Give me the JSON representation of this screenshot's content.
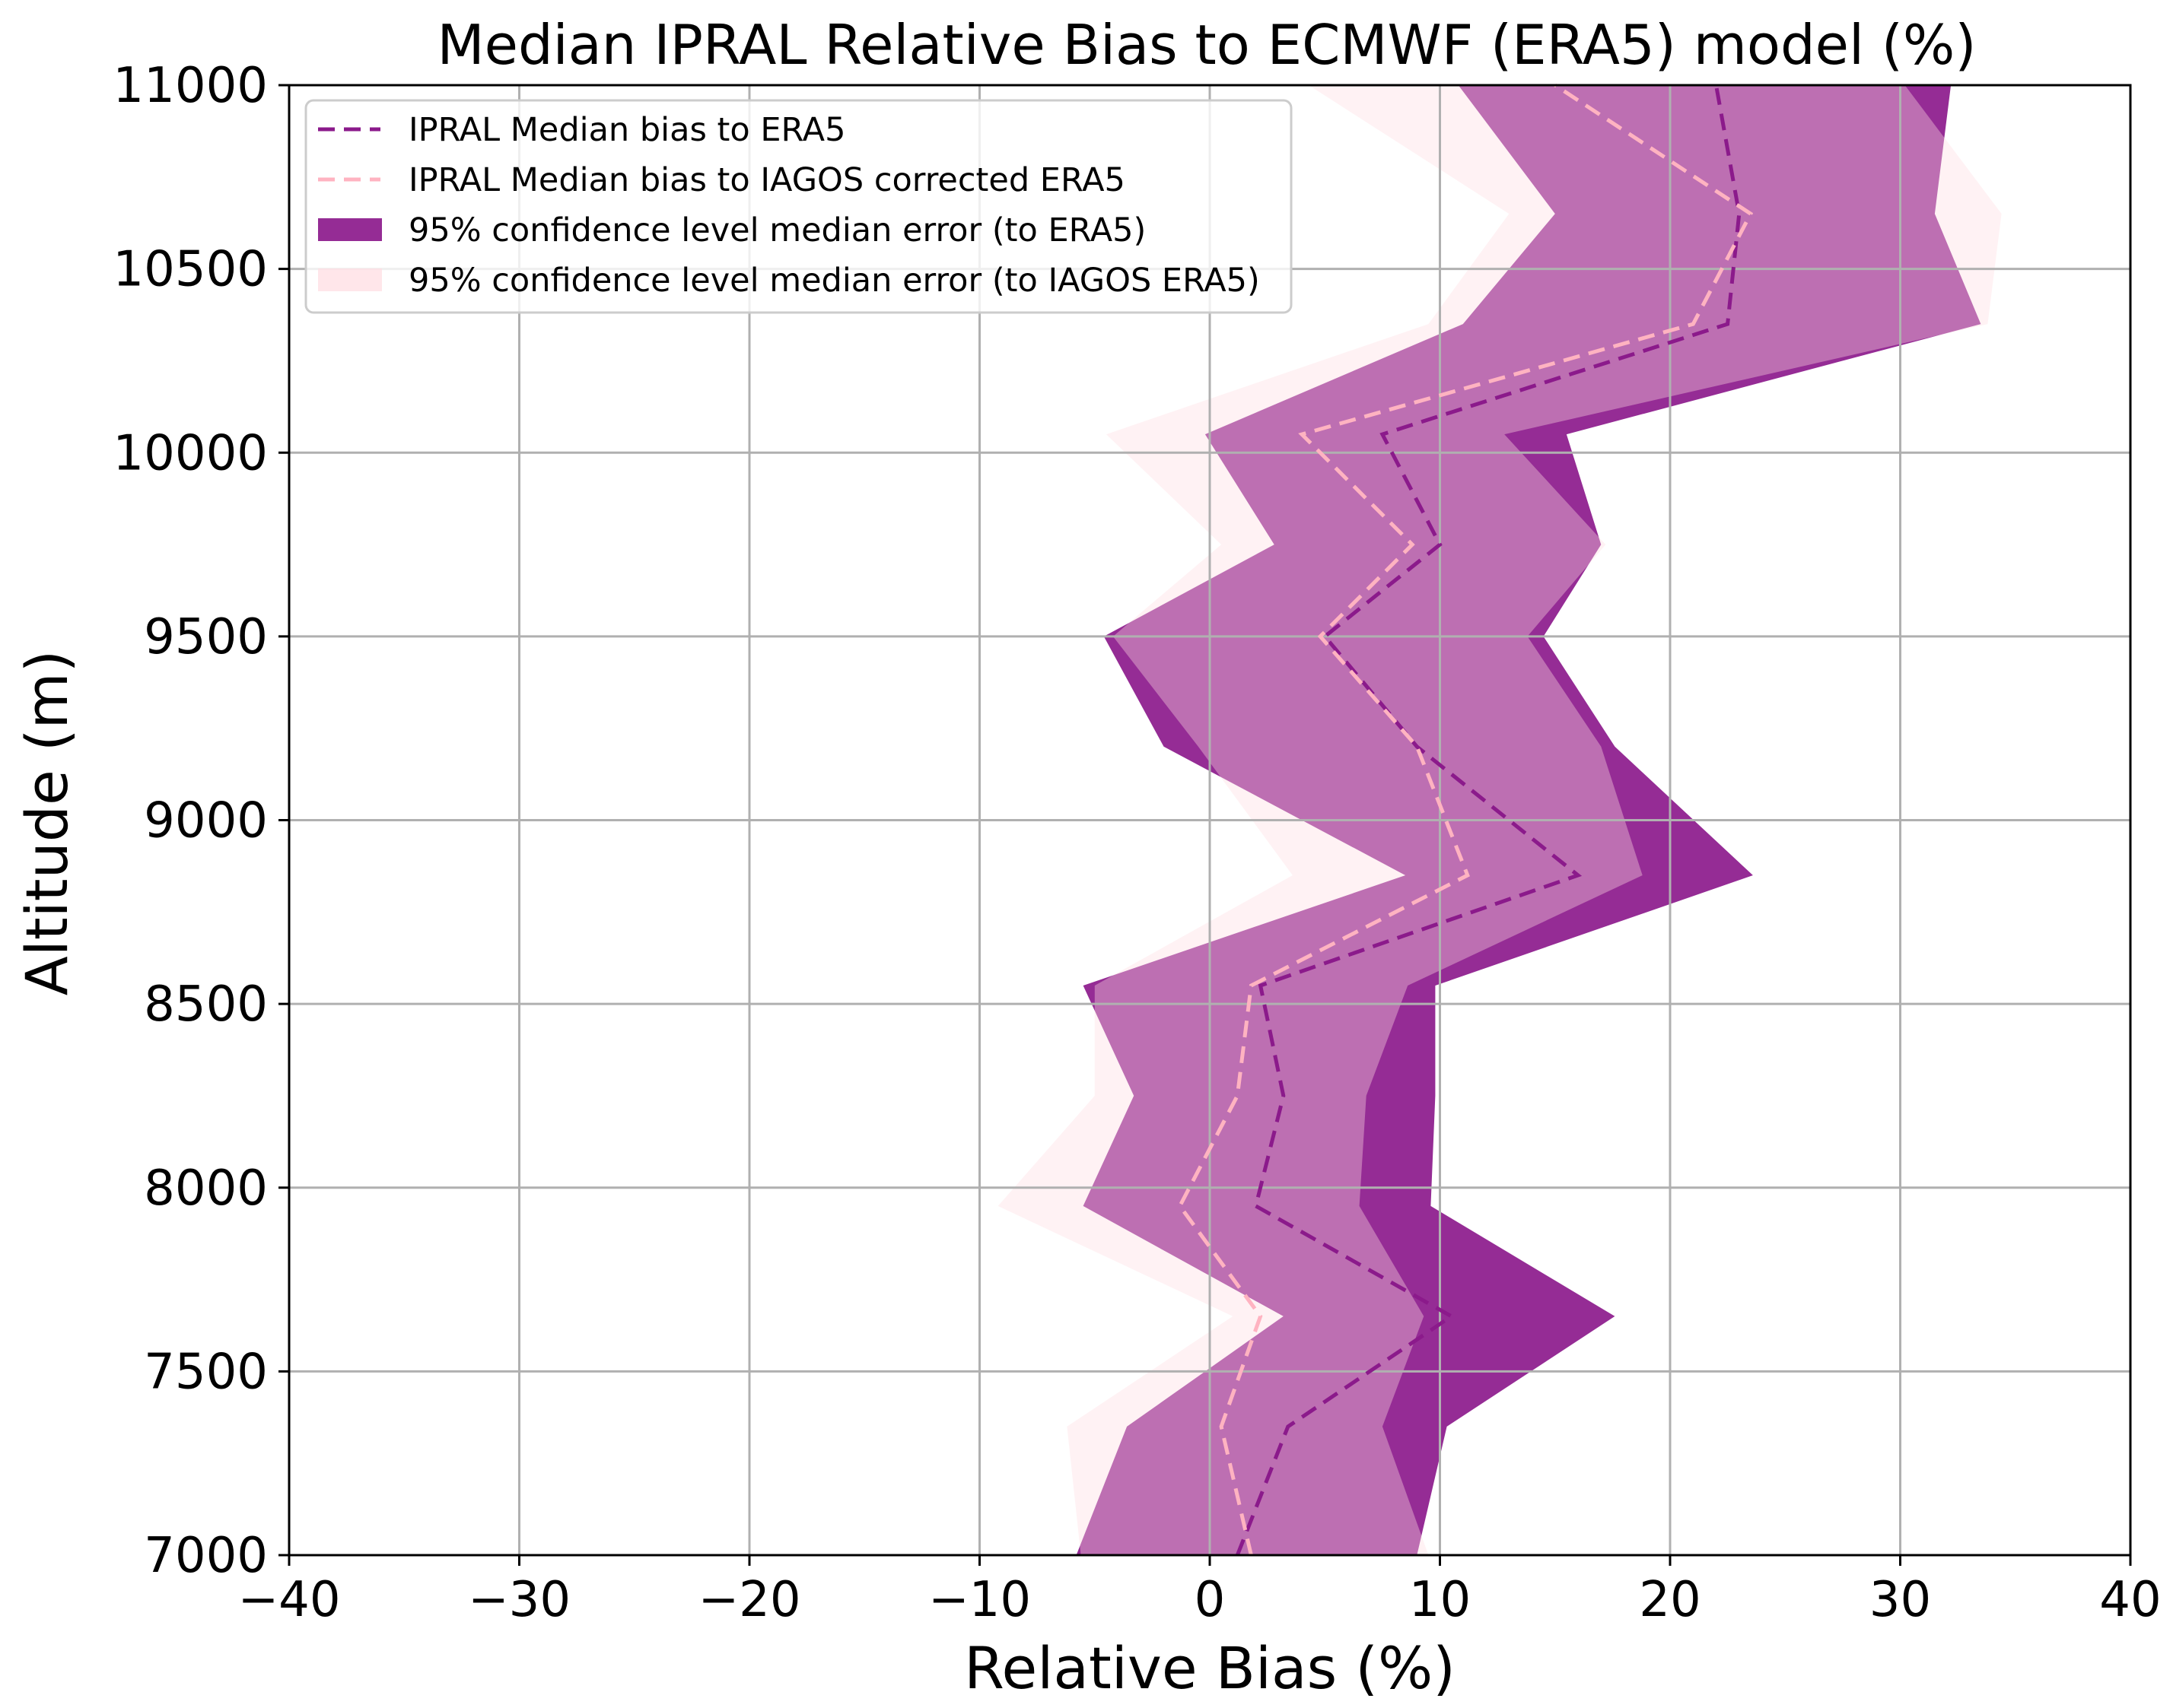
{
  "chart_data": {
    "type": "area",
    "title": "Median IPRAL Relative Bias to ECMWF (ERA5) model (%)",
    "xlabel": "Relative Bias (%)",
    "ylabel": "Altitude (m)",
    "xlim": [
      -40,
      40
    ],
    "ylim": [
      7000,
      11000
    ],
    "grid": true,
    "legend_position": "upper-left",
    "x_ticks": [
      -40,
      -30,
      -20,
      -10,
      0,
      10,
      20,
      30,
      40
    ],
    "x_tick_labels": [
      "−40",
      "−30",
      "−20",
      "−10",
      "0",
      "10",
      "20",
      "30",
      "40"
    ],
    "y_ticks": [
      7000,
      7500,
      8000,
      8500,
      9000,
      9500,
      10000,
      10500,
      11000
    ],
    "y_tick_labels": [
      "7000",
      "7500",
      "8000",
      "8500",
      "9000",
      "9500",
      "10000",
      "10500",
      "11000"
    ],
    "altitude": [
      7000,
      7350,
      7650,
      7950,
      8250,
      8550,
      8850,
      9200,
      9500,
      9750,
      10050,
      10350,
      10650,
      11000
    ],
    "series": [
      {
        "name": "IPRAL Median bias to ERA5",
        "style": "dashed-line",
        "color": "#8b1a8b",
        "values": [
          1.2,
          3.4,
          10.5,
          2.0,
          3.2,
          2.2,
          16.0,
          9.0,
          5.0,
          10.0,
          7.5,
          22.5,
          23.0,
          22.0
        ]
      },
      {
        "name": "IPRAL Median bias to IAGOS corrected ERA5",
        "style": "dashed-line",
        "color": "#ffb3c1",
        "values": [
          1.8,
          0.5,
          2.2,
          -1.3,
          1.2,
          1.8,
          11.2,
          9.0,
          4.8,
          8.8,
          4.0,
          21.0,
          23.5,
          15.0
        ]
      },
      {
        "name": "95% confidence level median error (to ERA5)",
        "style": "filled-band",
        "color": "#952c95",
        "lower": [
          -5.8,
          -3.6,
          3.2,
          -5.5,
          -3.3,
          -5.5,
          8.5,
          -2.0,
          -4.6,
          2.8,
          -0.2,
          11.0,
          15.0,
          10.8
        ],
        "upper": [
          9.0,
          10.3,
          17.6,
          9.6,
          9.8,
          9.8,
          23.6,
          17.6,
          14.5,
          17.0,
          15.5,
          33.5,
          31.5,
          32.2
        ]
      },
      {
        "name": "95% confidence level median error (to IAGOS ERA5)",
        "style": "filled-band",
        "color": "#ffdde3",
        "lower": [
          -5.6,
          -6.2,
          1.0,
          -9.2,
          -5.0,
          -5.0,
          3.6,
          -0.5,
          -4.2,
          0.5,
          -4.5,
          9.5,
          13.0,
          4.3
        ],
        "upper": [
          9.5,
          7.5,
          9.3,
          6.5,
          6.8,
          8.6,
          18.8,
          17.0,
          13.8,
          17.2,
          12.8,
          33.8,
          34.4,
          30.2
        ]
      }
    ]
  }
}
